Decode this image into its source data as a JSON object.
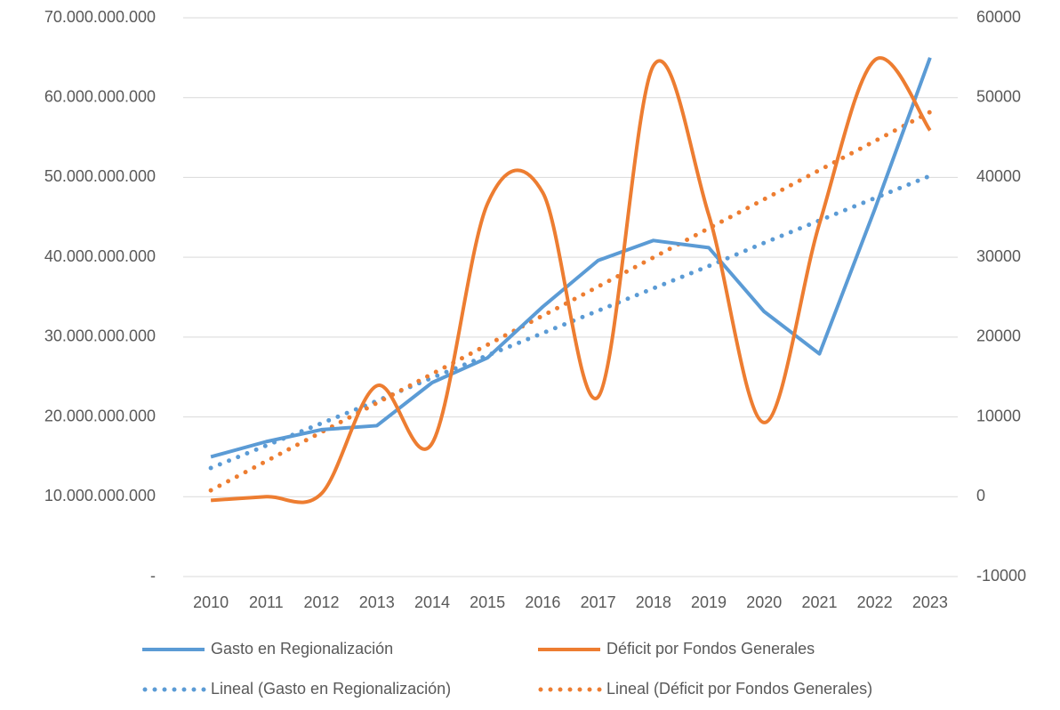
{
  "chart_data": {
    "type": "line",
    "categories": [
      "2010",
      "2011",
      "2012",
      "2013",
      "2014",
      "2015",
      "2016",
      "2017",
      "2018",
      "2019",
      "2020",
      "2021",
      "2022",
      "2023"
    ],
    "series": [
      {
        "name": "Gasto en Regionalización",
        "color": "#5b9bd5",
        "axis": "y",
        "style": "solid",
        "smooth": false,
        "values": [
          15000000000,
          16900000000,
          18400000000,
          18900000000,
          24300000000,
          27400000000,
          33800000000,
          39600000000,
          42100000000,
          41200000000,
          33200000000,
          27900000000,
          46000000000,
          65000000000
        ]
      },
      {
        "name": "Déficit por Fondos Generales",
        "color": "#ed7d31",
        "axis": "y2",
        "style": "solid",
        "smooth": true,
        "values": [
          -450,
          0,
          400,
          13900,
          6700,
          36700,
          38100,
          12500,
          54000,
          35300,
          9300,
          34200,
          54700,
          45900
        ]
      },
      {
        "name": "Lineal (Gasto en Regionalización)",
        "color": "#5b9bd5",
        "axis": "y",
        "style": "dotted",
        "smooth": false,
        "values": [
          13600000000,
          16400000000,
          19200000000,
          22000000000,
          24900000000,
          27700000000,
          30500000000,
          33300000000,
          36100000000,
          38900000000,
          41800000000,
          44600000000,
          47400000000,
          50200000000
        ]
      },
      {
        "name": "Lineal (Déficit por Fondos Generales)",
        "color": "#ed7d31",
        "axis": "y2",
        "style": "dotted",
        "smooth": false,
        "values": [
          800,
          4450,
          8090,
          11740,
          15380,
          19030,
          22680,
          26320,
          29970,
          33620,
          37260,
          40910,
          44550,
          48200
        ]
      }
    ],
    "ylim": [
      0,
      70000000000
    ],
    "yticks": [
      {
        "value": 0,
        "label": "-"
      },
      {
        "value": 10000000000,
        "label": "10.000.000.000"
      },
      {
        "value": 20000000000,
        "label": "20.000.000.000"
      },
      {
        "value": 30000000000,
        "label": "30.000.000.000"
      },
      {
        "value": 40000000000,
        "label": "40.000.000.000"
      },
      {
        "value": 50000000000,
        "label": "50.000.000.000"
      },
      {
        "value": 60000000000,
        "label": "60.000.000.000"
      },
      {
        "value": 70000000000,
        "label": "70.000.000.000"
      }
    ],
    "y2lim": [
      -10000,
      60000
    ],
    "y2ticks": [
      -10000,
      0,
      10000,
      20000,
      30000,
      40000,
      50000,
      60000
    ],
    "grid": true,
    "legend": "bottom"
  }
}
